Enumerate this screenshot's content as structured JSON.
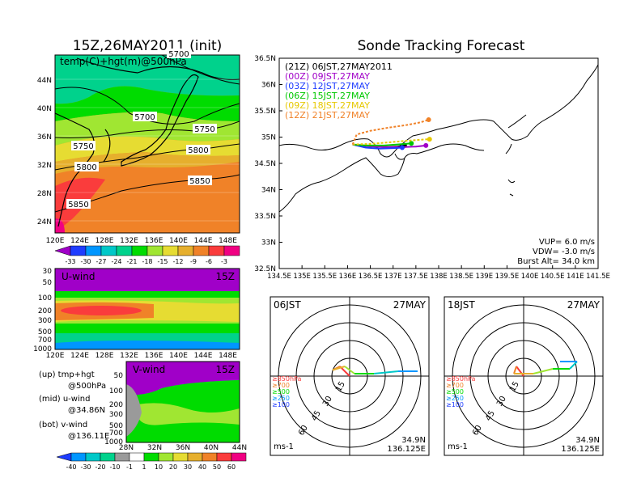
{
  "colors": {
    "purple": "#a000c8",
    "dark_blue": "#1e3cff",
    "blue": "#0096ff",
    "cyan": "#00c8c8",
    "green_dark": "#00d28c",
    "green": "#00dc00",
    "light_green": "#a0e632",
    "yellow": "#e6dc32",
    "orange_light": "#e6af2d",
    "orange": "#f08228",
    "red_orange": "#fa3c3c",
    "red": "#f00082"
  },
  "left_panel": {
    "title": "15Z,26MAY2011 (init)",
    "top_map": {
      "label": "temp(C)+hgt(m)@500hPa",
      "lat_ticks": [
        "44N",
        "40N",
        "36N",
        "32N",
        "28N",
        "24N"
      ],
      "lon_ticks": [
        "120E",
        "124E",
        "128E",
        "132E",
        "136E",
        "140E",
        "144E",
        "148E"
      ],
      "contour_labels": [
        "5700",
        "5750",
        "5750",
        "5800",
        "5800",
        "5850",
        "5850",
        "5700"
      ],
      "colorbar_labels": [
        "-33",
        "-30",
        "-27",
        "-24",
        "-21",
        "-18",
        "-15",
        "-12",
        "-9",
        "-6",
        "-3"
      ]
    },
    "u_wind": {
      "label": "U-wind",
      "time": "15Z",
      "p_ticks": [
        "30",
        "50",
        "100",
        "200",
        "300",
        "500",
        "700",
        "1000"
      ],
      "lon_ticks": [
        "120E",
        "124E",
        "128E",
        "132E",
        "136E",
        "140E",
        "144E",
        "148E"
      ]
    },
    "v_wind": {
      "label": "V-wind",
      "time": "15Z",
      "p_ticks": [
        "50",
        "100",
        "200",
        "300",
        "500",
        "700",
        "1000"
      ],
      "lat_ticks": [
        "28N",
        "32N",
        "36N",
        "40N",
        "44N"
      ],
      "colorbar_labels": [
        "-40",
        "-30",
        "-20",
        "-10",
        "-1",
        "1",
        "10",
        "20",
        "30",
        "40",
        "50",
        "60"
      ]
    },
    "legend_notes": [
      "(up) tmp+hgt",
      "@500hPa",
      "(mid) u-wind",
      "@34.86N",
      "(bot) v-wind",
      "@136.11E"
    ]
  },
  "chart_data": {
    "type": "line",
    "title": "Sonde Tracking Forecast",
    "lat_ticks": [
      "36.5N",
      "36N",
      "35.5N",
      "35N",
      "34.5N",
      "34N",
      "33.5N",
      "33N",
      "32.5N"
    ],
    "lon_ticks": [
      "134.5E",
      "135E",
      "135.5E",
      "136E",
      "136.5E",
      "137E",
      "137.5E",
      "138E",
      "138.5E",
      "139E",
      "139.5E",
      "140E",
      "140.5E",
      "141E",
      "141.5E"
    ],
    "xlim": [
      134.5,
      141.5
    ],
    "ylim": [
      32.5,
      36.5
    ],
    "series": [
      {
        "name": "(21Z)  06JST,27MAY2011",
        "color": "#000000",
        "x": [
          136.11,
          136.3,
          136.6,
          136.9,
          137.1,
          137.25
        ],
        "y": [
          34.86,
          34.84,
          34.82,
          34.81,
          34.82,
          34.84
        ]
      },
      {
        "name": "(00Z)  09JST,27MAY",
        "color": "#a000c8",
        "x": [
          136.11,
          136.4,
          136.8,
          137.2,
          137.5,
          137.72
        ],
        "y": [
          34.86,
          34.83,
          34.81,
          34.81,
          34.82,
          34.84
        ]
      },
      {
        "name": "(03Z)  12JST,27MAY",
        "color": "#1e3cff",
        "x": [
          136.11,
          136.4,
          136.7,
          137.0,
          137.2
        ],
        "y": [
          34.86,
          34.8,
          34.78,
          34.79,
          34.8
        ]
      },
      {
        "name": "(06Z)  15JST,27MAY",
        "color": "#00c800",
        "x": [
          136.11,
          136.4,
          136.8,
          137.1,
          137.4
        ],
        "y": [
          34.86,
          34.84,
          34.84,
          34.86,
          34.88
        ]
      },
      {
        "name": "(09Z)  18JST,27MAY",
        "color": "#e6c800",
        "x": [
          136.11,
          136.5,
          136.9,
          137.3,
          137.6,
          137.8
        ],
        "y": [
          34.86,
          34.87,
          34.9,
          34.93,
          34.95,
          34.96
        ]
      },
      {
        "name": "(12Z)  21JST,27MAY",
        "color": "#f08228",
        "x": [
          136.11,
          136.2,
          136.5,
          136.9,
          137.3,
          137.6,
          137.78
        ],
        "y": [
          34.86,
          35.05,
          35.12,
          35.18,
          35.23,
          35.28,
          35.33
        ]
      }
    ],
    "annotations": [
      "VUP=  6.0  m/s",
      "VDW= -3.0  m/s",
      "Burst Alt=  34.0  km"
    ]
  },
  "hodographs": [
    {
      "time": "06JST",
      "date": "27MAY",
      "lat": "34.9N",
      "lon": "136.125E",
      "unit": "ms-1",
      "rings": [
        "15",
        "30",
        "45",
        "60"
      ],
      "legend": [
        "≥850hPa",
        "≥700",
        "≥500",
        "≥250",
        "≥100"
      ]
    },
    {
      "time": "18JST",
      "date": "27MAY",
      "lat": "34.9N",
      "lon": "136.125E",
      "unit": "ms-1",
      "rings": [
        "15",
        "30",
        "45",
        "60"
      ],
      "legend": [
        "≥850hPa",
        "≥700",
        "≥500",
        "≥250",
        "≥100"
      ]
    }
  ]
}
